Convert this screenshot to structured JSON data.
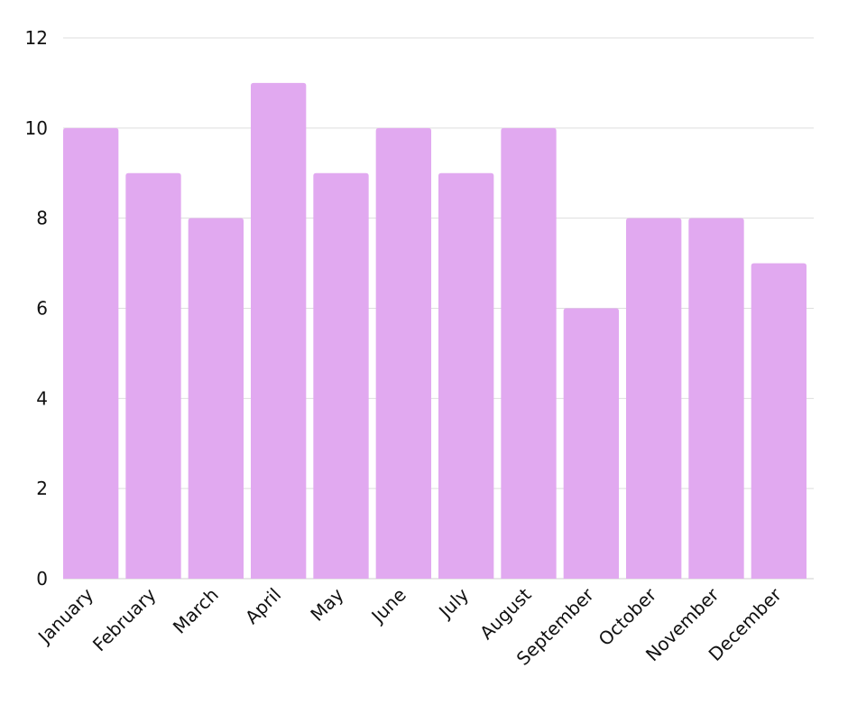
{
  "chart_data": {
    "type": "bar",
    "categories": [
      "January",
      "February",
      "March",
      "April",
      "May",
      "June",
      "July",
      "August",
      "September",
      "October",
      "November",
      "December"
    ],
    "values": [
      10,
      9,
      8,
      11,
      9,
      10,
      9,
      10,
      6,
      8,
      8,
      7
    ],
    "ylim": [
      0,
      12
    ],
    "yticks": [
      0,
      2,
      4,
      6,
      8,
      10,
      12
    ],
    "grid": true,
    "legend": "none"
  },
  "colors": {
    "bar": "#e1a9f0",
    "grid": "#dedede",
    "axis": "#cfcfcf",
    "text": "#111111",
    "background": "#ffffff"
  }
}
